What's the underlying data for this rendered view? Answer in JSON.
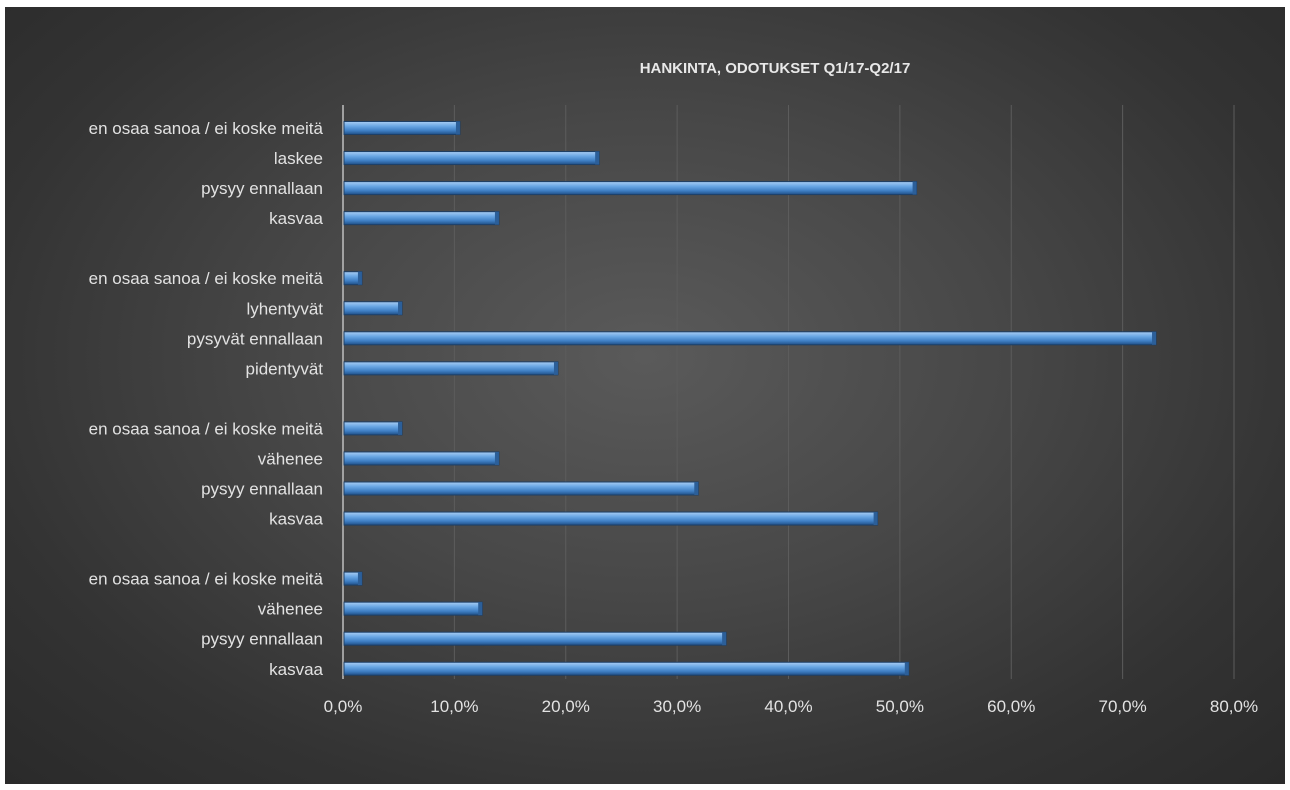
{
  "chart_data": {
    "type": "bar",
    "orientation": "horizontal",
    "title": "HANKINTA, ODOTUKSET Q1/17-Q2/17",
    "xlabel": "",
    "ylabel": "",
    "xlim": [
      0,
      80
    ],
    "x_ticks": [
      "0,0%",
      "10,0%",
      "20,0%",
      "30,0%",
      "40,0%",
      "50,0%",
      "60,0%",
      "70,0%",
      "80,0%"
    ],
    "grid": true,
    "legend": "none",
    "categories": [
      "en osaa sanoa / ei koske meitä",
      "laskee",
      "pysyy ennallaan",
      "kasvaa",
      "en osaa sanoa / ei koske meitä",
      "lyhentyvät",
      "pysyvät ennallaan",
      "pidentyvät",
      "en osaa sanoa / ei koske meitä",
      "vähenee",
      "pysyy ennallaan",
      "kasvaa",
      "en osaa sanoa / ei koske meitä",
      "vähenee",
      "pysyy ennallaan",
      "kasvaa"
    ],
    "values": [
      10.5,
      23.0,
      51.5,
      14.0,
      1.7,
      5.3,
      73.0,
      19.3,
      5.3,
      14.0,
      31.9,
      48.0,
      1.7,
      12.5,
      34.4,
      50.8
    ],
    "colors": {
      "bar": "#5b9bd5",
      "background": "#404040",
      "text": "#e2e2e2",
      "grid": "#5c5c5c",
      "axis": "#bfbfbf"
    }
  }
}
